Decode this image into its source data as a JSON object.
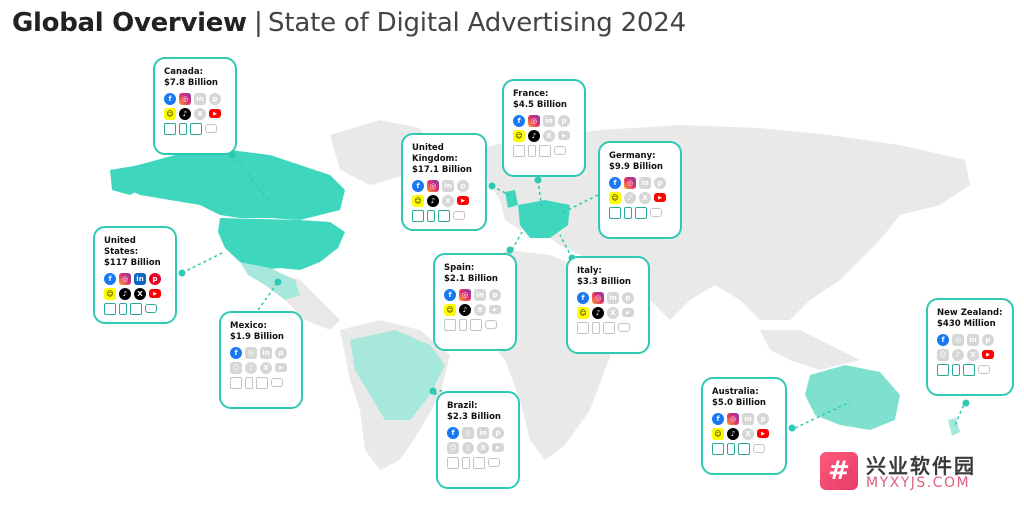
{
  "header": {
    "title_bold": "Global Overview",
    "separator": "|",
    "title_light": "State of Digital Advertising 2024"
  },
  "colors": {
    "accent": "#2ec9b3",
    "highlight_country": "#3fd6be",
    "secondary_country": "#a7e8dd",
    "land": "#e9e9e9",
    "inactive_icon": "#d6d6d6"
  },
  "platform_icons": [
    "facebook-icon",
    "instagram-icon",
    "linkedin-icon",
    "pinterest-icon",
    "snapchat-icon",
    "tiktok-icon",
    "x-icon",
    "youtube-icon",
    "desktop-icon",
    "mobile-icon",
    "ctv-icon",
    "tv-icon"
  ],
  "countries": [
    {
      "id": "canada",
      "name": "Canada:",
      "value": "$7.8 Billion",
      "active": [
        1,
        1,
        0,
        0,
        1,
        1,
        0,
        1,
        1,
        1,
        1,
        0
      ]
    },
    {
      "id": "united-states",
      "name": "United States:",
      "value": "$117 Billion",
      "active": [
        1,
        1,
        1,
        1,
        1,
        1,
        1,
        1,
        1,
        1,
        1,
        1
      ]
    },
    {
      "id": "mexico",
      "name": "Mexico:",
      "value": "$1.9 Billion",
      "active": [
        1,
        0,
        0,
        0,
        0,
        0,
        0,
        0,
        0,
        0,
        0,
        0
      ]
    },
    {
      "id": "united-kingdom",
      "name": "United Kingdom:",
      "value": "$17.1 Billion",
      "active": [
        1,
        1,
        0,
        0,
        1,
        1,
        0,
        1,
        1,
        1,
        1,
        0
      ]
    },
    {
      "id": "france",
      "name": "France:",
      "value": "$4.5 Billion",
      "active": [
        1,
        1,
        0,
        0,
        1,
        1,
        0,
        0,
        0,
        0,
        0,
        0
      ]
    },
    {
      "id": "germany",
      "name": "Germany:",
      "value": "$9.9 Billion",
      "active": [
        1,
        1,
        0,
        0,
        1,
        0,
        0,
        1,
        1,
        1,
        1,
        0
      ]
    },
    {
      "id": "spain",
      "name": "Spain:",
      "value": "$2.1 Billion",
      "active": [
        1,
        1,
        0,
        0,
        1,
        1,
        0,
        0,
        0,
        0,
        0,
        0
      ]
    },
    {
      "id": "italy",
      "name": "Italy:",
      "value": "$3.3 Billion",
      "active": [
        1,
        1,
        0,
        0,
        1,
        1,
        0,
        0,
        0,
        0,
        0,
        0
      ]
    },
    {
      "id": "brazil",
      "name": "Brazil:",
      "value": "$2.3 Billion",
      "active": [
        1,
        0,
        0,
        0,
        0,
        0,
        0,
        0,
        0,
        0,
        0,
        0
      ]
    },
    {
      "id": "australia",
      "name": "Australia:",
      "value": "$5.0 Billion",
      "active": [
        1,
        1,
        0,
        0,
        1,
        1,
        0,
        1,
        1,
        1,
        1,
        0
      ]
    },
    {
      "id": "new-zealand",
      "name": "New Zealand:",
      "value": "$430 Million",
      "active": [
        1,
        0,
        0,
        0,
        0,
        0,
        0,
        1,
        1,
        1,
        1,
        0
      ]
    }
  ],
  "watermark": {
    "logo_glyph": "#",
    "top": "兴业软件园",
    "bottom": "MYXYJS.COM"
  }
}
